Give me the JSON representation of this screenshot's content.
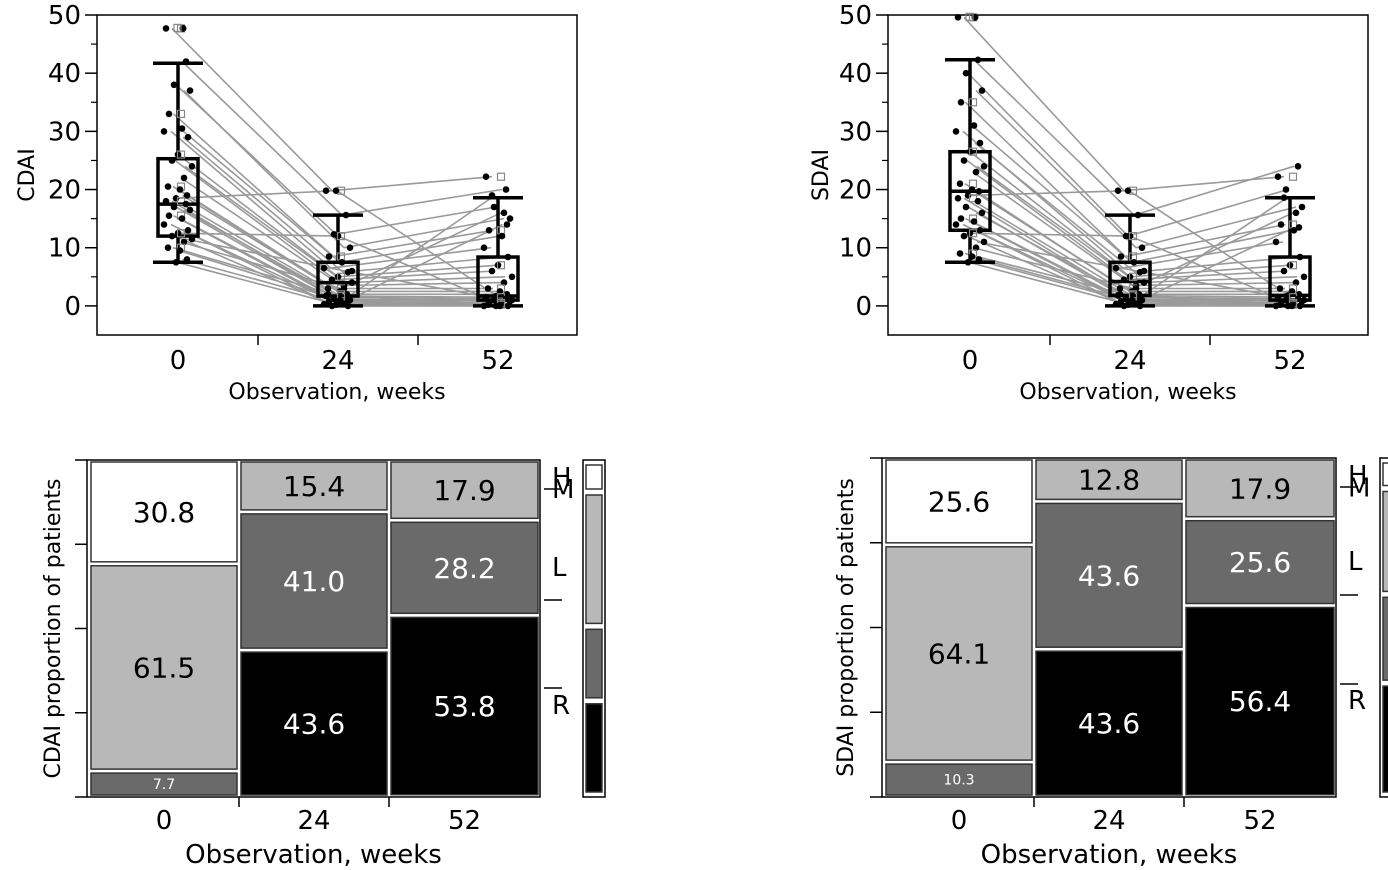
{
  "chart_data": [
    {
      "type": "box",
      "ylabel": "CDAI",
      "xlabel": "Observation, weeks",
      "categories": [
        "0",
        "24",
        "52"
      ],
      "ylim": [
        -5,
        50
      ],
      "yticks": [
        "0",
        "10",
        "20",
        "30",
        "40",
        "50"
      ],
      "xticks": [
        "0",
        "24",
        "52"
      ],
      "boxes": [
        {
          "x": "0",
          "min": 7.5,
          "q1": 12.0,
          "median": 17.5,
          "q3": 25.3,
          "max": 41.7
        },
        {
          "x": "24",
          "min": 0.0,
          "q1": 1.7,
          "median": 4.0,
          "q3": 7.5,
          "max": 15.6
        },
        {
          "x": "52",
          "min": 0.0,
          "q1": 1.0,
          "median": 1.7,
          "q3": 8.4,
          "max": 18.6
        }
      ],
      "outliers": [
        {
          "x": "0",
          "y": 47.7
        }
      ],
      "patients": [
        [
          47.7,
          19.8,
          22.2
        ],
        [
          42.0,
          15.6,
          20.0
        ],
        [
          38.0,
          12.3,
          17.0
        ],
        [
          37.0,
          10.0,
          15.0
        ],
        [
          33.0,
          8.5,
          13.0
        ],
        [
          30.5,
          7.5,
          12.0
        ],
        [
          30.0,
          6.5,
          10.0
        ],
        [
          29.0,
          5.8,
          8.4
        ],
        [
          26.0,
          5.0,
          7.0
        ],
        [
          25.0,
          4.5,
          6.0
        ],
        [
          24.0,
          4.0,
          5.0
        ],
        [
          22.0,
          3.5,
          4.0
        ],
        [
          20.5,
          3.0,
          3.0
        ],
        [
          20.0,
          2.5,
          2.5
        ],
        [
          19.0,
          2.0,
          2.0
        ],
        [
          18.5,
          19.8,
          1.7
        ],
        [
          18.0,
          1.7,
          1.5
        ],
        [
          17.5,
          1.5,
          1.2
        ],
        [
          17.0,
          1.2,
          1.0
        ],
        [
          16.5,
          1.0,
          0.8
        ],
        [
          15.5,
          0.8,
          0.5
        ],
        [
          15.0,
          0.5,
          0.3
        ],
        [
          14.0,
          0.3,
          0.0
        ],
        [
          13.0,
          0.0,
          0.0
        ],
        [
          12.5,
          12.0,
          0.5
        ],
        [
          12.0,
          0.0,
          19.0
        ],
        [
          11.5,
          6.0,
          1.0
        ],
        [
          11.0,
          3.0,
          16.0
        ],
        [
          10.0,
          2.0,
          0.2
        ],
        [
          9.5,
          1.0,
          0.0
        ],
        [
          8.0,
          0.5,
          14.0
        ],
        [
          7.5,
          0.2,
          0.0
        ]
      ]
    },
    {
      "type": "box",
      "ylabel": "SDAI",
      "xlabel": "Observation, weeks",
      "categories": [
        "0",
        "24",
        "52"
      ],
      "ylim": [
        -5,
        50
      ],
      "yticks": [
        "0",
        "10",
        "20",
        "30",
        "40",
        "50"
      ],
      "xticks": [
        "0",
        "24",
        "52"
      ],
      "boxes": [
        {
          "x": "0",
          "min": 7.5,
          "q1": 13.0,
          "median": 19.7,
          "q3": 26.5,
          "max": 42.3
        },
        {
          "x": "24",
          "min": 0.0,
          "q1": 1.8,
          "median": 4.2,
          "q3": 7.5,
          "max": 15.6
        },
        {
          "x": "52",
          "min": 0.0,
          "q1": 1.0,
          "median": 1.8,
          "q3": 8.4,
          "max": 18.6
        }
      ],
      "outliers": [
        {
          "x": "0",
          "y": 49.6
        }
      ],
      "patients": [
        [
          49.6,
          19.8,
          22.2
        ],
        [
          42.3,
          15.6,
          24.0
        ],
        [
          40.0,
          12.0,
          20.0
        ],
        [
          37.0,
          10.0,
          17.0
        ],
        [
          35.0,
          8.5,
          14.0
        ],
        [
          31.0,
          7.5,
          13.0
        ],
        [
          30.0,
          6.5,
          11.0
        ],
        [
          28.0,
          5.8,
          8.4
        ],
        [
          26.5,
          5.0,
          7.0
        ],
        [
          25.0,
          4.5,
          6.0
        ],
        [
          24.0,
          4.0,
          5.0
        ],
        [
          23.0,
          3.5,
          4.0
        ],
        [
          21.0,
          3.0,
          3.0
        ],
        [
          20.0,
          2.5,
          2.5
        ],
        [
          19.7,
          2.0,
          2.0
        ],
        [
          19.0,
          19.8,
          1.8
        ],
        [
          18.5,
          1.8,
          1.5
        ],
        [
          18.0,
          1.5,
          1.2
        ],
        [
          17.0,
          1.2,
          1.0
        ],
        [
          16.0,
          1.0,
          0.8
        ],
        [
          15.0,
          0.8,
          0.5
        ],
        [
          14.5,
          0.5,
          0.3
        ],
        [
          14.0,
          0.3,
          0.0
        ],
        [
          13.0,
          0.0,
          0.0
        ],
        [
          12.5,
          12.0,
          0.5
        ],
        [
          12.0,
          0.0,
          18.6
        ],
        [
          11.0,
          6.0,
          1.0
        ],
        [
          10.0,
          3.0,
          16.0
        ],
        [
          9.0,
          2.0,
          0.2
        ],
        [
          8.5,
          1.0,
          0.0
        ],
        [
          8.0,
          0.5,
          13.5
        ],
        [
          7.5,
          0.2,
          0.0
        ]
      ]
    },
    {
      "type": "mosaic",
      "ylabel": "CDAI proportion of patients",
      "xlabel": "Observation, weeks",
      "categories": [
        "0",
        "24",
        "52"
      ],
      "levels": [
        "H",
        "M",
        "L",
        "R"
      ],
      "level_colors": {
        "H": "#ffffff",
        "M": "#b8b8b8",
        "L": "#6a6a6a",
        "R": "#000000"
      },
      "level_text_colors": {
        "H": "#000000",
        "M": "#000000",
        "L": "#ffffff",
        "R": "#ffffff"
      },
      "columns": [
        {
          "x": "0",
          "H": 30.8,
          "M": 61.5,
          "L": 7.7,
          "R": 0.0
        },
        {
          "x": "24",
          "H": 0.0,
          "M": 15.4,
          "L": 41.0,
          "R": 43.6
        },
        {
          "x": "52",
          "H": 0.0,
          "M": 17.9,
          "L": 28.2,
          "R": 53.8
        }
      ],
      "labels": [
        [
          "30.8",
          "61.5",
          "7.7",
          ""
        ],
        [
          "",
          "15.4",
          "41.0",
          "43.6"
        ],
        [
          "",
          "17.9",
          "28.2",
          "53.8"
        ]
      ],
      "legend_overall": {
        "H": 10.3,
        "M": 46.2,
        "L": 25.6,
        "R": 32.4
      }
    },
    {
      "type": "mosaic",
      "ylabel": "SDAI proportion of patients",
      "xlabel": "Observation, weeks",
      "categories": [
        "0",
        "24",
        "52"
      ],
      "levels": [
        "H",
        "M",
        "L",
        "R"
      ],
      "level_colors": {
        "H": "#ffffff",
        "M": "#b8b8b8",
        "L": "#6a6a6a",
        "R": "#000000"
      },
      "level_text_colors": {
        "H": "#000000",
        "M": "#000000",
        "L": "#ffffff",
        "R": "#ffffff"
      },
      "columns": [
        {
          "x": "0",
          "H": 25.6,
          "M": 64.1,
          "L": 10.3,
          "R": 0.0
        },
        {
          "x": "24",
          "H": 0.0,
          "M": 12.8,
          "L": 43.6,
          "R": 43.6
        },
        {
          "x": "52",
          "H": 0.0,
          "M": 17.9,
          "L": 25.6,
          "R": 56.4
        }
      ],
      "labels": [
        [
          "25.6",
          "64.1",
          "10.3",
          ""
        ],
        [
          "",
          "12.8",
          "43.6",
          "43.6"
        ],
        [
          "",
          "17.9",
          "25.6",
          "56.4"
        ]
      ],
      "legend_overall": {
        "H": 8.5,
        "M": 31.6,
        "L": 26.5,
        "R": 33.4
      }
    }
  ]
}
